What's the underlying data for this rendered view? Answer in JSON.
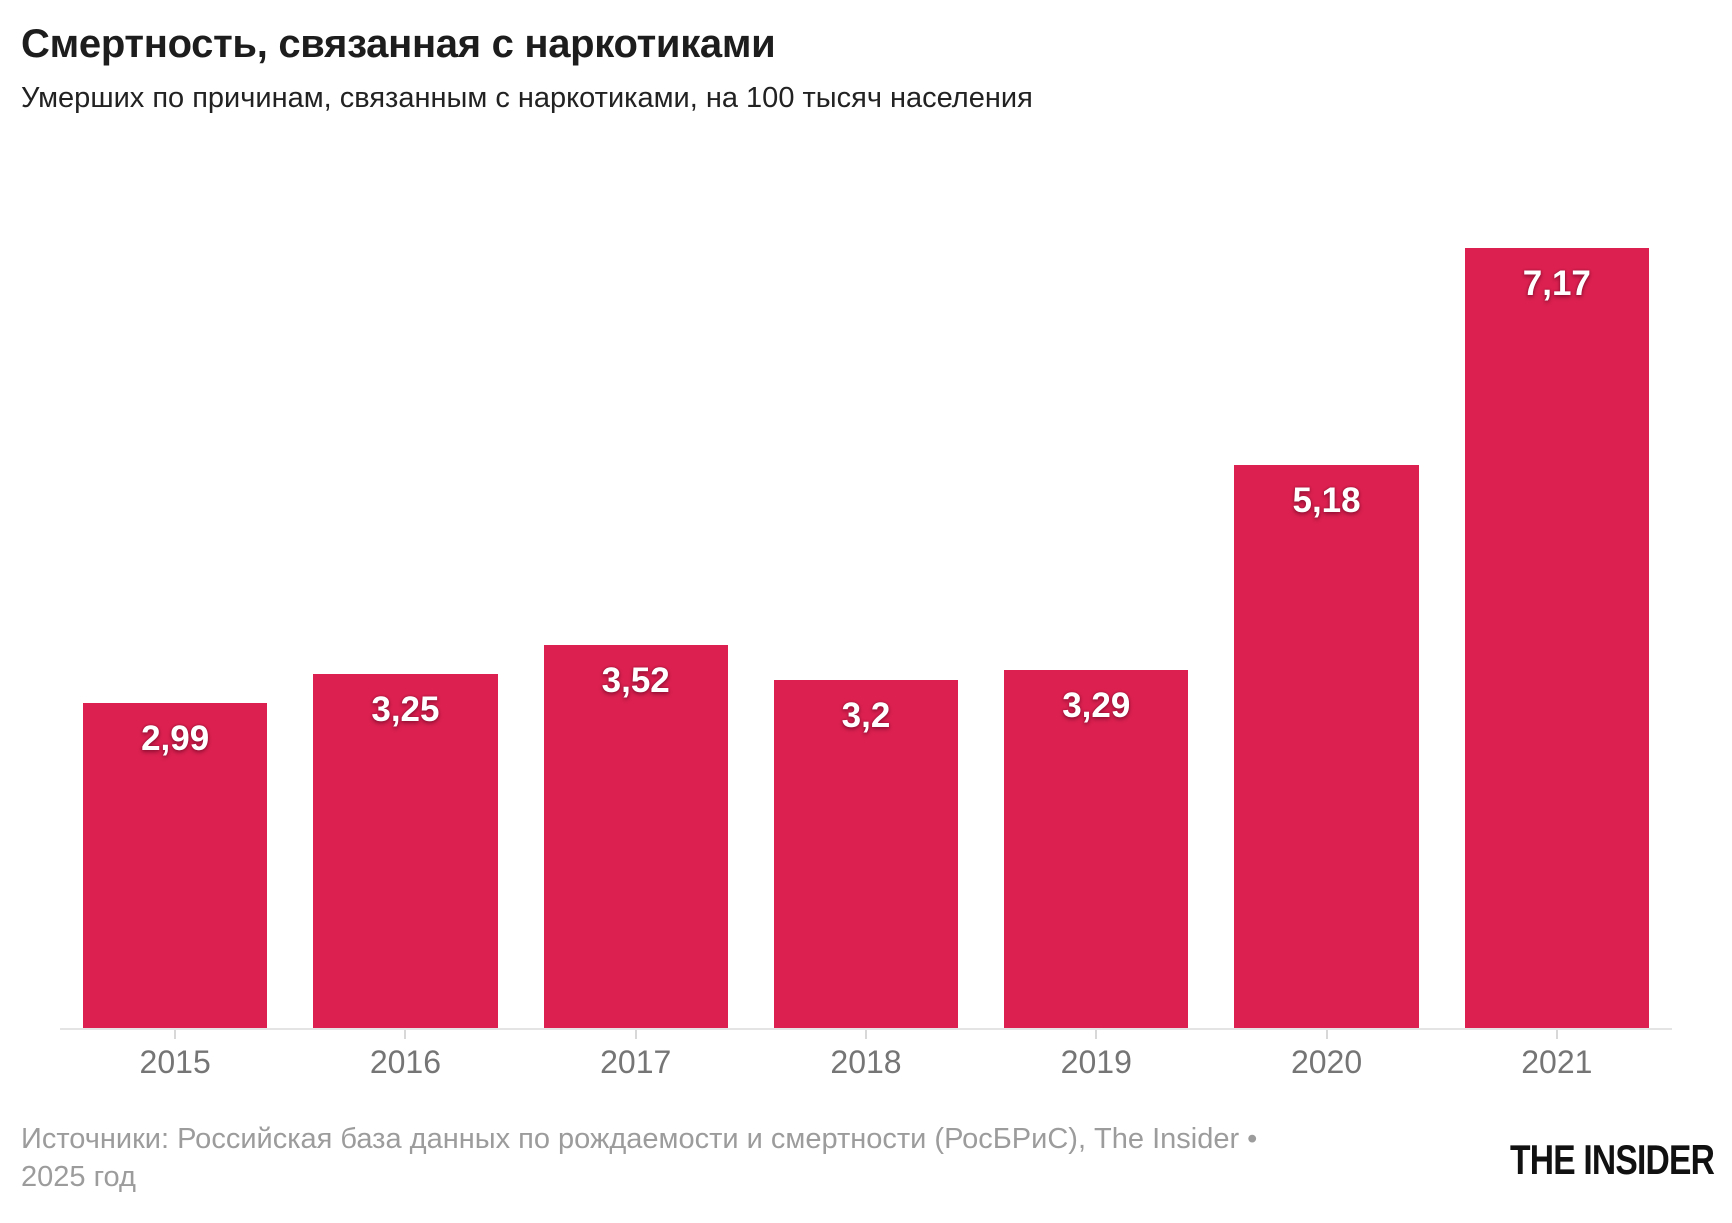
{
  "header": {
    "title": "Смертность, связанная с наркотиками",
    "subtitle": "Умерших по причинам, связанным с наркотиками, на 100 тысяч населения"
  },
  "chart_data": {
    "type": "bar",
    "title": "Смертность, связанная с наркотиками",
    "subtitle": "Умерших по причинам, связанным с наркотиками, на 100 тысяч населения",
    "categories": [
      "2015",
      "2016",
      "2017",
      "2018",
      "2019",
      "2020",
      "2021"
    ],
    "values": [
      2.99,
      3.25,
      3.52,
      3.2,
      3.29,
      5.18,
      7.17
    ],
    "value_labels": [
      "2,99",
      "3,25",
      "3,52",
      "3,2",
      "3,29",
      "5,18",
      "7,17"
    ],
    "xlabel": "",
    "ylabel": "",
    "ylim": [
      0,
      7.17
    ],
    "grid": false,
    "legend": false,
    "value_label_position": "inside-top",
    "bar_color": "#dc2150"
  },
  "footer": {
    "source": "Источники: Российская база данных по рождаемости и смертности (РосБРиС), The Insider • 2025 год",
    "logo_text": "THE INSIDER"
  },
  "colors": {
    "bar": "#dc2150",
    "bar_label": "#ffffff",
    "bar_label_shadow": "#8f1034",
    "axis_line": "#e4e4e4",
    "tick": "#d8d8d8",
    "axis_label": "#757575",
    "title": "#1d1d1d",
    "subtitle": "#222222",
    "source": "#9c9c9c",
    "logo": "#111111",
    "background": "#ffffff"
  }
}
